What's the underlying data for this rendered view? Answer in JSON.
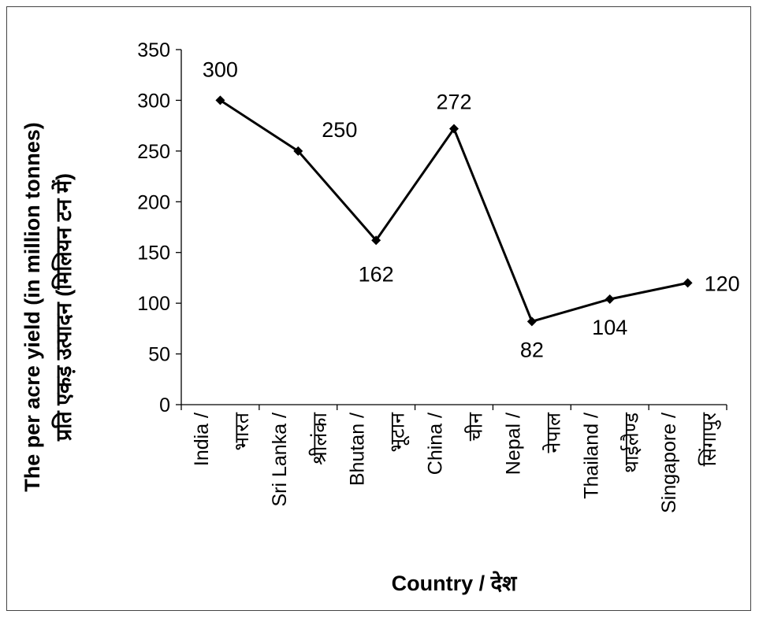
{
  "chart_data": {
    "type": "line",
    "title": "",
    "xlabel": "Country / देश",
    "ylabel_line1": "The per acre yield (in million tonnes)",
    "ylabel_line2": "प्रति एकड़ उत्पादन (मिलियन टन में)",
    "ylim": [
      0,
      350
    ],
    "yticks": [
      0,
      50,
      100,
      150,
      200,
      250,
      300,
      350
    ],
    "categories": [
      [
        "India /",
        "भारत"
      ],
      [
        "Sri Lanka /",
        "श्रीलंका"
      ],
      [
        "Bhutan /",
        "भूटान"
      ],
      [
        "China /",
        "चीन"
      ],
      [
        "Nepal /",
        "नेपाल"
      ],
      [
        "Thailand /",
        "थाईलैण्ड"
      ],
      [
        "Singapore /",
        "सिंगापुर"
      ]
    ],
    "values": [
      300,
      250,
      162,
      272,
      82,
      104,
      120
    ],
    "data_labels": [
      "300",
      "250",
      "162",
      "272",
      "82",
      "104",
      "120"
    ],
    "grid": false,
    "colors": {
      "line": "#000000",
      "marker": "#000000"
    }
  }
}
